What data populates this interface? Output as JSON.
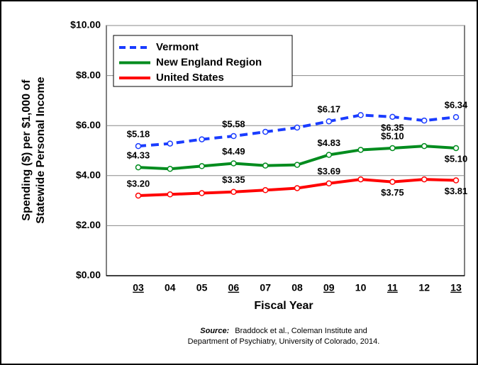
{
  "chart_data": {
    "type": "line",
    "ylabel": [
      "Spending ($) per $1,000 of",
      "Statewide Personal Income"
    ],
    "xlabel": "Fiscal Year",
    "categories": [
      "03",
      "04",
      "05",
      "06",
      "07",
      "08",
      "09",
      "10",
      "11",
      "12",
      "13"
    ],
    "underlined": [
      true,
      false,
      false,
      true,
      false,
      false,
      true,
      false,
      true,
      false,
      true
    ],
    "series": [
      {
        "name": "Vermont",
        "color": "#1a3cff",
        "dashed": true,
        "values": [
          5.18,
          5.28,
          5.45,
          5.58,
          5.75,
          5.92,
          6.17,
          6.42,
          6.35,
          6.2,
          6.34
        ],
        "value_labels": [
          "$5.18",
          null,
          null,
          "$5.58",
          null,
          null,
          "$6.17",
          null,
          "$6.35",
          null,
          "$6.34"
        ]
      },
      {
        "name": "New England Region",
        "color": "#008c1e",
        "dashed": false,
        "values": [
          4.33,
          4.27,
          4.38,
          4.49,
          4.4,
          4.43,
          4.83,
          5.03,
          5.1,
          5.18,
          5.1
        ],
        "value_labels": [
          "$4.33",
          null,
          null,
          "$4.49",
          null,
          null,
          "$4.83",
          null,
          "$5.10",
          null,
          "$5.10"
        ]
      },
      {
        "name": "United States",
        "color": "#ff0000",
        "dashed": false,
        "values": [
          3.2,
          3.25,
          3.3,
          3.35,
          3.42,
          3.5,
          3.69,
          3.85,
          3.75,
          3.85,
          3.81
        ],
        "value_labels": [
          "$3.20",
          null,
          null,
          "$3.35",
          null,
          null,
          "$3.69",
          null,
          "$3.75",
          null,
          "$3.81"
        ]
      }
    ],
    "ylim": [
      0,
      10
    ],
    "yticks": [
      {
        "value": 0,
        "label": "$0.00"
      },
      {
        "value": 2,
        "label": "$2.00"
      },
      {
        "value": 4,
        "label": "$4.00"
      },
      {
        "value": 6,
        "label": "$6.00"
      },
      {
        "value": 8,
        "label": "$8.00"
      },
      {
        "value": 10,
        "label": "$10.00"
      }
    ],
    "grid": true,
    "legend": "top-left",
    "source_label": "Source:",
    "source_lines": [
      "Braddock et al., Coleman Institute and",
      "Department of Psychiatry, University of Colorado, 2014."
    ]
  }
}
